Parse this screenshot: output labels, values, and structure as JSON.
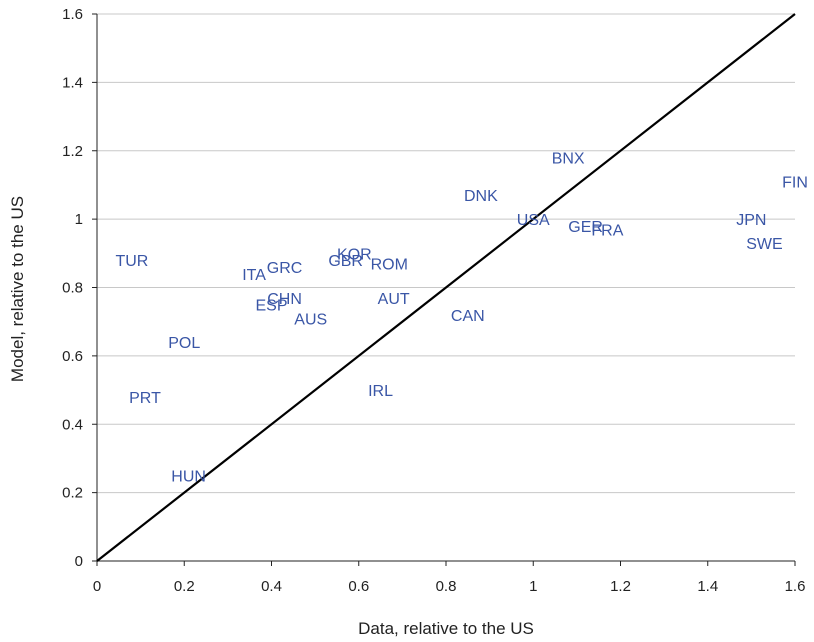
{
  "chart_data": {
    "type": "scatter",
    "title": "",
    "xlabel": "Data, relative to the US",
    "ylabel": "Model, relative to the US",
    "xlim": [
      0,
      1.6
    ],
    "ylim": [
      0,
      1.6
    ],
    "x_ticks": [
      "0",
      "0.2",
      "0.4",
      "0.6",
      "0.8",
      "1",
      "1.2",
      "1.4",
      "1.6"
    ],
    "y_ticks": [
      "0",
      "0.2",
      "0.4",
      "0.6",
      "0.8",
      "1",
      "1.2",
      "1.4",
      "1.6"
    ],
    "grid": "horizontal",
    "reference_line": {
      "x": [
        0,
        1.6
      ],
      "y": [
        0,
        1.6
      ]
    },
    "label_color": "#3a56a6",
    "line_color": "#000000",
    "grid_color": "#c8c8c8",
    "points": [
      {
        "label": "TUR",
        "x": 0.08,
        "y": 0.88
      },
      {
        "label": "ITA",
        "x": 0.36,
        "y": 0.84
      },
      {
        "label": "GRC",
        "x": 0.43,
        "y": 0.86
      },
      {
        "label": "GBR",
        "x": 0.57,
        "y": 0.88
      },
      {
        "label": "KOR",
        "x": 0.59,
        "y": 0.9
      },
      {
        "label": "ROM",
        "x": 0.67,
        "y": 0.87
      },
      {
        "label": "CHN",
        "x": 0.43,
        "y": 0.77
      },
      {
        "label": "ESP",
        "x": 0.4,
        "y": 0.75
      },
      {
        "label": "AUS",
        "x": 0.49,
        "y": 0.71
      },
      {
        "label": "AUT",
        "x": 0.68,
        "y": 0.77
      },
      {
        "label": "CAN",
        "x": 0.85,
        "y": 0.72
      },
      {
        "label": "POL",
        "x": 0.2,
        "y": 0.64
      },
      {
        "label": "PRT",
        "x": 0.11,
        "y": 0.48
      },
      {
        "label": "IRL",
        "x": 0.65,
        "y": 0.5
      },
      {
        "label": "HUN",
        "x": 0.21,
        "y": 0.25
      },
      {
        "label": "DNK",
        "x": 0.88,
        "y": 1.07
      },
      {
        "label": "BNX",
        "x": 1.08,
        "y": 1.18
      },
      {
        "label": "USA",
        "x": 1.0,
        "y": 1.0
      },
      {
        "label": "GER",
        "x": 1.12,
        "y": 0.98
      },
      {
        "label": "FRA",
        "x": 1.17,
        "y": 0.97
      },
      {
        "label": "JPN",
        "x": 1.5,
        "y": 1.0
      },
      {
        "label": "SWE",
        "x": 1.53,
        "y": 0.93
      },
      {
        "label": "FIN",
        "x": 1.6,
        "y": 1.11
      }
    ]
  }
}
